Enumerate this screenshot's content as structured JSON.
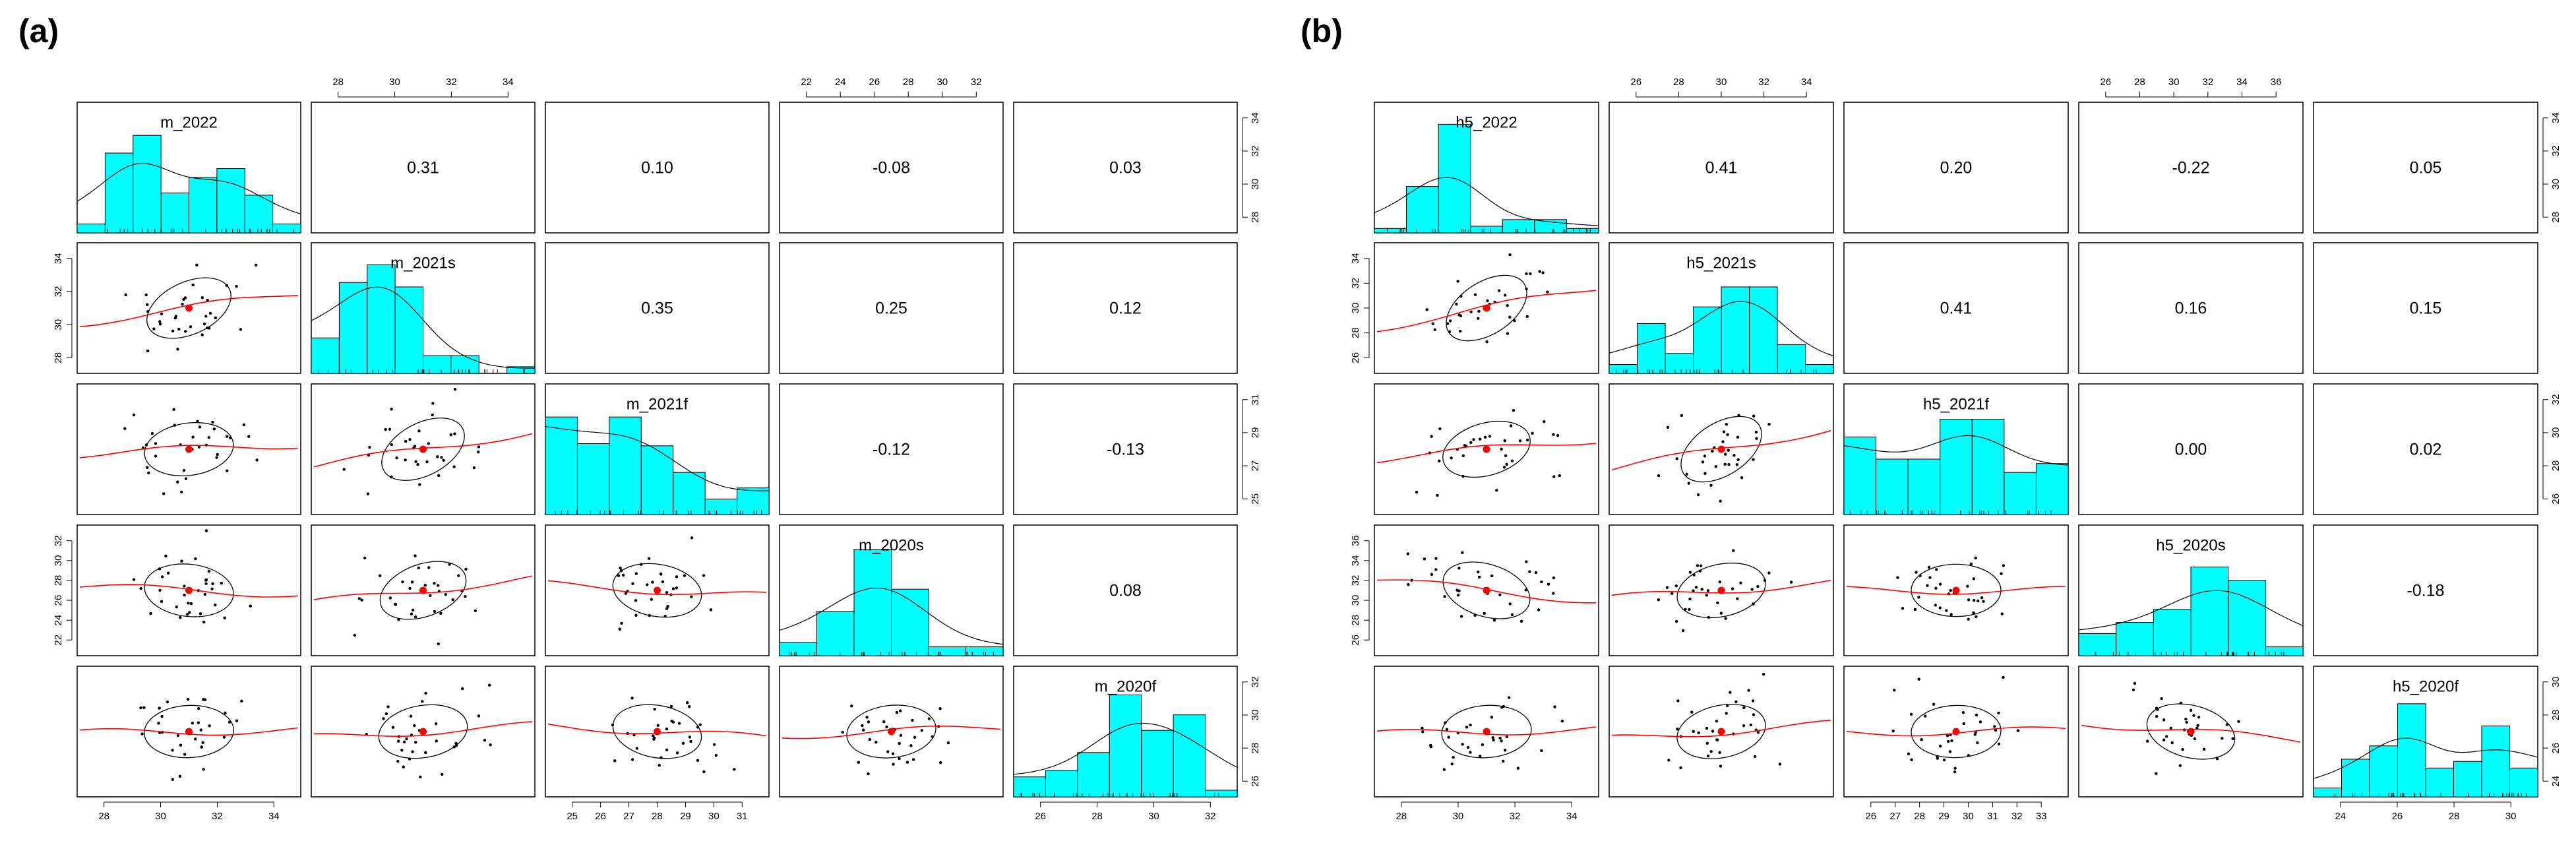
{
  "panel_labels": [
    "(a)",
    "(b)"
  ],
  "colors": {
    "hist_fill": "#00FFFF",
    "smoother": "#FF0000",
    "mean_point": "#FF0000",
    "points": "#000000",
    "ellipse": "#000000"
  },
  "chart_data": [
    {
      "type": "scatterplot_matrix",
      "variables": [
        "m_2022",
        "m_2021s",
        "m_2021f",
        "m_2020s",
        "m_2020f"
      ],
      "correlations": [
        [
          null,
          "0.31",
          "0.10",
          "-0.08",
          "0.03"
        ],
        [
          null,
          null,
          "0.35",
          "0.25",
          "0.12"
        ],
        [
          null,
          null,
          null,
          "-0.12",
          "-0.13"
        ],
        [
          null,
          null,
          null,
          null,
          "0.08"
        ]
      ],
      "axes": {
        "top": {
          "1": [
            "28",
            "30",
            "32",
            "34"
          ],
          "3": [
            "22",
            "24",
            "26",
            "28",
            "30",
            "32"
          ]
        },
        "right": {
          "0": [
            "28",
            "30",
            "32",
            "34"
          ],
          "2": [
            "25",
            "27",
            "29",
            "31"
          ],
          "4": [
            "26",
            "28",
            "30",
            "32"
          ]
        },
        "left": {
          "1": [
            "28",
            "30",
            "32",
            "34"
          ],
          "3": [
            "22",
            "24",
            "26",
            "28",
            "30",
            "32"
          ]
        },
        "bottom": {
          "0": [
            "28",
            "30",
            "32",
            "34"
          ],
          "2": [
            "25",
            "26",
            "27",
            "28",
            "29",
            "30",
            "31"
          ],
          "4": [
            "26",
            "28",
            "30",
            "32"
          ]
        }
      },
      "histograms": [
        [
          0.08,
          0.72,
          0.88,
          0.36,
          0.5,
          0.58,
          0.34,
          0.08
        ],
        [
          0.32,
          0.82,
          0.98,
          0.78,
          0.16,
          0.16,
          0.0,
          0.06
        ],
        [
          0.88,
          0.64,
          0.88,
          0.62,
          0.38,
          0.14,
          0.24
        ],
        [
          0.12,
          0.4,
          0.96,
          0.6,
          0.08,
          0.08
        ],
        [
          0.18,
          0.24,
          0.4,
          0.92,
          0.6,
          0.74,
          0.06
        ]
      ]
    },
    {
      "type": "scatterplot_matrix",
      "variables": [
        "h5_2022",
        "h5_2021s",
        "h5_2021f",
        "h5_2020s",
        "h5_2020f"
      ],
      "correlations": [
        [
          null,
          "0.41",
          "0.20",
          "-0.22",
          "0.05"
        ],
        [
          null,
          null,
          "0.41",
          "0.16",
          "0.15"
        ],
        [
          null,
          null,
          null,
          "0.00",
          "0.02"
        ],
        [
          null,
          null,
          null,
          null,
          "-0.18"
        ]
      ],
      "axes": {
        "top": {
          "1": [
            "26",
            "28",
            "30",
            "32",
            "34"
          ],
          "3": [
            "26",
            "28",
            "30",
            "32",
            "34",
            "36"
          ]
        },
        "right": {
          "0": [
            "28",
            "30",
            "32",
            "34"
          ],
          "2": [
            "26",
            "28",
            "30",
            "32"
          ],
          "4": [
            "24",
            "26",
            "28",
            "30"
          ]
        },
        "left": {
          "1": [
            "26",
            "28",
            "30",
            "32",
            "34"
          ],
          "3": [
            "26",
            "28",
            "30",
            "32",
            "34",
            "36"
          ]
        },
        "bottom": {
          "0": [
            "28",
            "30",
            "32",
            "34"
          ],
          "2": [
            "26",
            "27",
            "28",
            "29",
            "30",
            "31",
            "32",
            "33"
          ],
          "4": [
            "24",
            "26",
            "28",
            "30"
          ]
        }
      },
      "histograms": [
        [
          0.04,
          0.42,
          0.98,
          0.06,
          0.12,
          0.12,
          0.04
        ],
        [
          0.08,
          0.45,
          0.18,
          0.6,
          0.78,
          0.78,
          0.26,
          0.08
        ],
        [
          0.7,
          0.5,
          0.5,
          0.86,
          0.86,
          0.38,
          0.46
        ],
        [
          0.2,
          0.3,
          0.42,
          0.8,
          0.68,
          0.08
        ],
        [
          0.08,
          0.34,
          0.46,
          0.84,
          0.26,
          0.32,
          0.64,
          0.26
        ]
      ]
    }
  ]
}
